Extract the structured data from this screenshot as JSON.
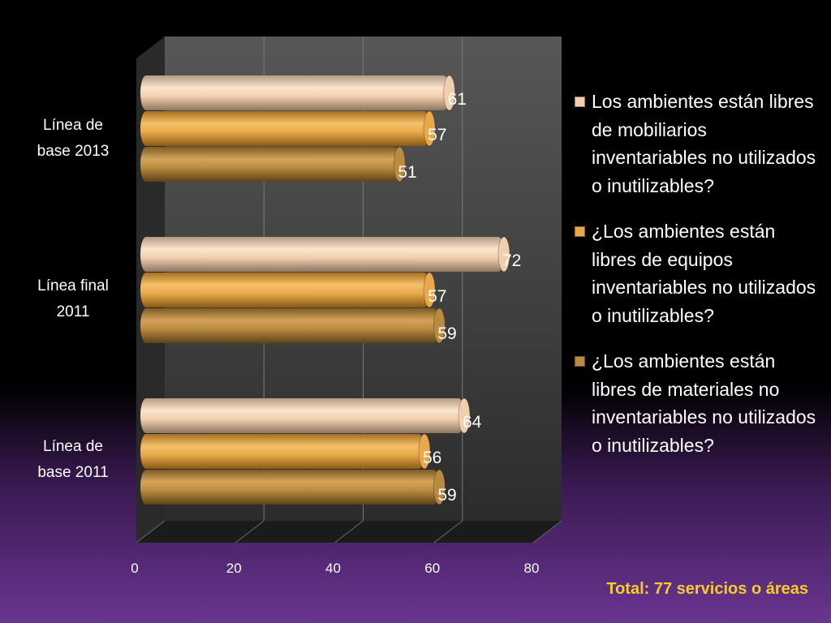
{
  "chart_data": {
    "type": "bar",
    "orientation": "horizontal",
    "style": "3d-cylinder",
    "categories": [
      "Línea de base 2013",
      "Línea final 2011",
      "Línea de base 2011"
    ],
    "category_lines": [
      [
        "Línea de",
        "base 2013"
      ],
      [
        "Línea final",
        "2011"
      ],
      [
        "Línea de",
        "base 2011"
      ]
    ],
    "series": [
      {
        "name": "Los ambientes están libres de mobiliarios inventariables no utilizados o inutilizables?",
        "color": "#f1cfae",
        "values": [
          61,
          72,
          64
        ]
      },
      {
        "name": "¿Los ambientes están libres de equipos inventariables no utilizados o inutilizables?",
        "color": "#e9a94a",
        "values": [
          57,
          57,
          56
        ]
      },
      {
        "name": "¿Los ambientes están libres de materiales no inventariables no utilizados o inutilizables?",
        "color": "#b98a40",
        "values": [
          51,
          59,
          59
        ]
      }
    ],
    "value_labels": [
      [
        "61",
        "57",
        "51"
      ],
      [
        "72",
        "57",
        "59"
      ],
      [
        "64",
        "56",
        "59"
      ]
    ],
    "xlim": [
      0,
      80
    ],
    "xticks": [
      "0",
      "20",
      "40",
      "60",
      "80"
    ],
    "grid": true,
    "legend_position": "right"
  },
  "footnote": "Total: 77 servicios o áreas"
}
